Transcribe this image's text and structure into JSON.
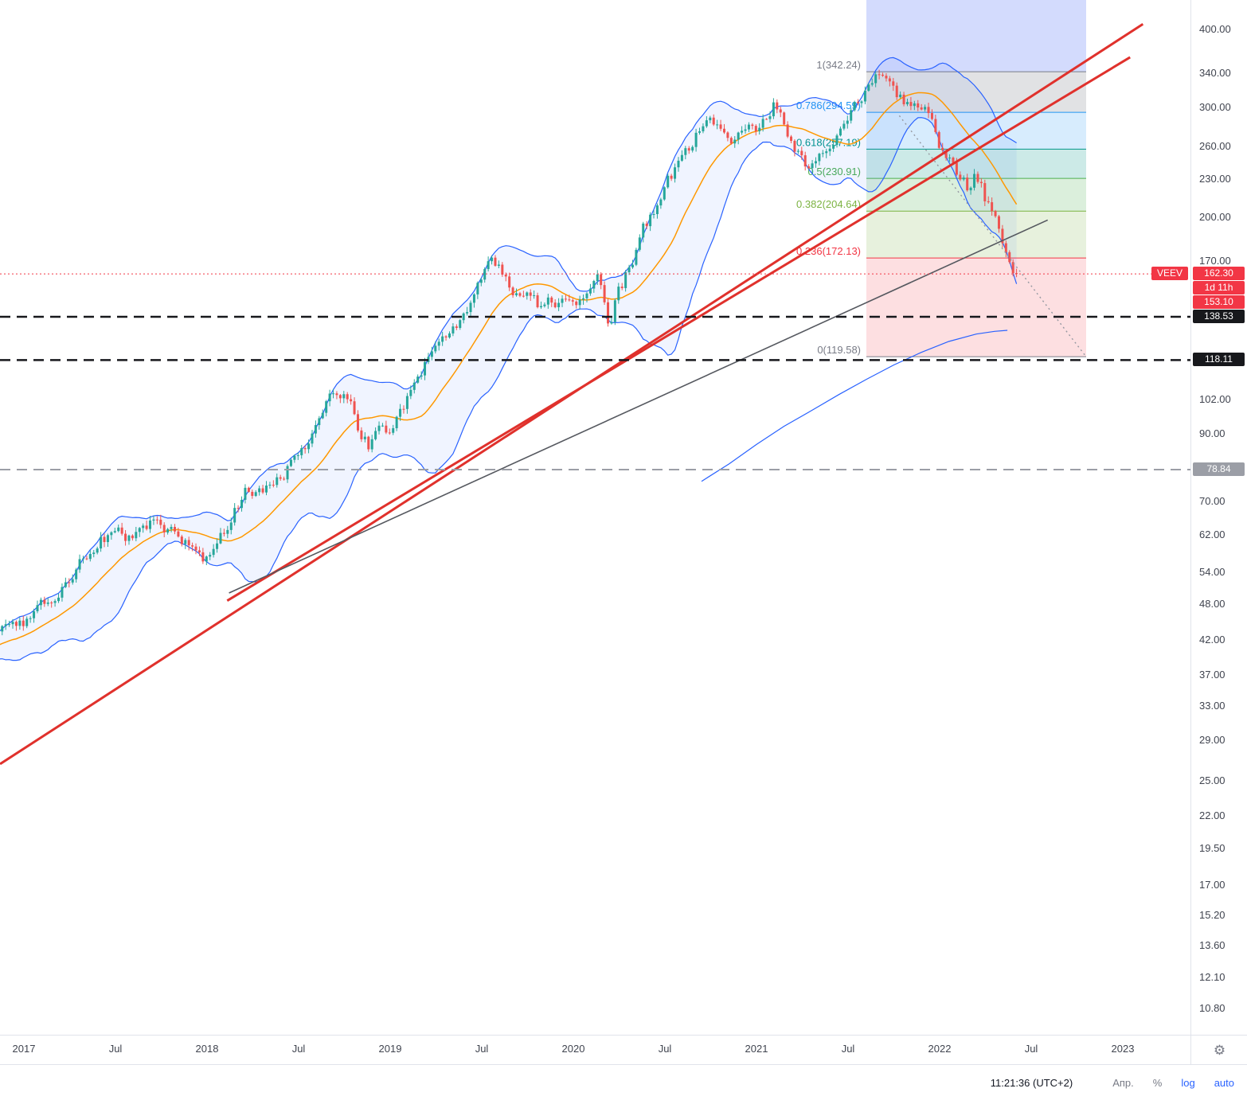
{
  "icons": {
    "gear": "⚙"
  },
  "toolbar": {
    "time": "11:21:36 (UTC+2)",
    "adj": "Апр.",
    "percent": "%",
    "log": "log",
    "auto": "auto"
  },
  "chart_data": {
    "type": "candlestick",
    "symbol": "VEEV",
    "timeframe_hint": "1W",
    "scale": "log",
    "last_price": 162.3,
    "price_label": {
      "symbol": "VEEV",
      "price": "162.30",
      "countdown": "1d 11h",
      "secondary_price": "153.10",
      "bg": "#f23645"
    },
    "candle_colors": {
      "up": "#26a69a",
      "down": "#ef5350"
    },
    "y_axis": {
      "ticks": [
        {
          "label": "400.00",
          "value": 400
        },
        {
          "label": "340.00",
          "value": 340
        },
        {
          "label": "300.00",
          "value": 300
        },
        {
          "label": "260.00",
          "value": 260
        },
        {
          "label": "230.00",
          "value": 230
        },
        {
          "label": "200.00",
          "value": 200
        },
        {
          "label": "170.00",
          "value": 170
        },
        {
          "label": "102.00",
          "value": 102
        },
        {
          "label": "90.00",
          "value": 90
        },
        {
          "label": "70.00",
          "value": 70
        },
        {
          "label": "62.00",
          "value": 62
        },
        {
          "label": "54.00",
          "value": 54
        },
        {
          "label": "48.00",
          "value": 48
        },
        {
          "label": "42.00",
          "value": 42
        },
        {
          "label": "37.00",
          "value": 37
        },
        {
          "label": "33.00",
          "value": 33
        },
        {
          "label": "29.00",
          "value": 29
        },
        {
          "label": "25.00",
          "value": 25
        },
        {
          "label": "22.00",
          "value": 22
        },
        {
          "label": "19.50",
          "value": 19.5
        },
        {
          "label": "17.00",
          "value": 17
        },
        {
          "label": "15.20",
          "value": 15.2
        },
        {
          "label": "13.60",
          "value": 13.6
        },
        {
          "label": "12.10",
          "value": 12.1
        },
        {
          "label": "10.80",
          "value": 10.8
        }
      ]
    },
    "x_axis": {
      "ticks": [
        {
          "label": "2017",
          "t": 2017
        },
        {
          "label": "Jul",
          "t": 2017.5
        },
        {
          "label": "2018",
          "t": 2018
        },
        {
          "label": "Jul",
          "t": 2018.5
        },
        {
          "label": "2019",
          "t": 2019
        },
        {
          "label": "Jul",
          "t": 2019.5
        },
        {
          "label": "2020",
          "t": 2020
        },
        {
          "label": "Jul",
          "t": 2020.5
        },
        {
          "label": "2021",
          "t": 2021
        },
        {
          "label": "Jul",
          "t": 2021.5
        },
        {
          "label": "2022",
          "t": 2022
        },
        {
          "label": "Jul",
          "t": 2022.5
        },
        {
          "label": "2023",
          "t": 2023
        }
      ]
    },
    "price_path": [
      [
        2016.42,
        40
      ],
      [
        2016.6,
        41
      ],
      [
        2016.8,
        42.5
      ],
      [
        2017.0,
        44
      ],
      [
        2017.08,
        47
      ],
      [
        2017.17,
        49
      ],
      [
        2017.25,
        52
      ],
      [
        2017.33,
        57
      ],
      [
        2017.42,
        61
      ],
      [
        2017.5,
        63
      ],
      [
        2017.58,
        61
      ],
      [
        2017.65,
        64
      ],
      [
        2017.72,
        65
      ],
      [
        2017.8,
        62
      ],
      [
        2017.88,
        60
      ],
      [
        2017.95,
        57.5
      ],
      [
        2018.0,
        57
      ],
      [
        2018.05,
        60
      ],
      [
        2018.12,
        65
      ],
      [
        2018.2,
        73
      ],
      [
        2018.28,
        71
      ],
      [
        2018.35,
        74
      ],
      [
        2018.42,
        78
      ],
      [
        2018.5,
        82
      ],
      [
        2018.58,
        90
      ],
      [
        2018.65,
        99
      ],
      [
        2018.72,
        106
      ],
      [
        2018.78,
        103
      ],
      [
        2018.82,
        93
      ],
      [
        2018.88,
        86
      ],
      [
        2018.95,
        91
      ],
      [
        2019.0,
        89
      ],
      [
        2019.08,
        100
      ],
      [
        2019.16,
        112
      ],
      [
        2019.25,
        124
      ],
      [
        2019.33,
        131
      ],
      [
        2019.42,
        142
      ],
      [
        2019.5,
        158
      ],
      [
        2019.55,
        168
      ],
      [
        2019.6,
        163
      ],
      [
        2019.68,
        152
      ],
      [
        2019.75,
        148
      ],
      [
        2019.82,
        142
      ],
      [
        2019.9,
        147
      ],
      [
        2019.96,
        150
      ],
      [
        2020.0,
        147
      ],
      [
        2020.08,
        154
      ],
      [
        2020.14,
        160
      ],
      [
        2020.2,
        128
      ],
      [
        2020.24,
        148
      ],
      [
        2020.3,
        165
      ],
      [
        2020.38,
        190
      ],
      [
        2020.45,
        205
      ],
      [
        2020.52,
        228
      ],
      [
        2020.58,
        245
      ],
      [
        2020.64,
        262
      ],
      [
        2020.7,
        278
      ],
      [
        2020.76,
        288
      ],
      [
        2020.82,
        272
      ],
      [
        2020.88,
        268
      ],
      [
        2020.94,
        275
      ],
      [
        2021.0,
        281
      ],
      [
        2021.06,
        295
      ],
      [
        2021.1,
        308
      ],
      [
        2021.15,
        285
      ],
      [
        2021.2,
        262
      ],
      [
        2021.27,
        243
      ],
      [
        2021.33,
        255
      ],
      [
        2021.4,
        268
      ],
      [
        2021.47,
        284
      ],
      [
        2021.53,
        299
      ],
      [
        2021.6,
        318
      ],
      [
        2021.65,
        335
      ],
      [
        2021.68,
        341
      ],
      [
        2021.72,
        325
      ],
      [
        2021.78,
        312
      ],
      [
        2021.83,
        303
      ],
      [
        2021.87,
        313
      ],
      [
        2021.9,
        307
      ],
      [
        2021.95,
        287
      ],
      [
        2022.0,
        262
      ],
      [
        2022.05,
        247
      ],
      [
        2022.1,
        231
      ],
      [
        2022.15,
        222
      ],
      [
        2022.2,
        234
      ],
      [
        2022.25,
        214
      ],
      [
        2022.3,
        199
      ],
      [
        2022.35,
        183
      ],
      [
        2022.4,
        168
      ],
      [
        2022.42,
        162.3
      ]
    ],
    "bollinger": {
      "length": 20,
      "stdev": 2,
      "basis_color": "#ff9800",
      "band_color": "#2962ff",
      "fill_color": "rgba(41,98,255,0.07)"
    },
    "long_ma": {
      "color": "#2962ff",
      "points": [
        [
          2020.7,
          75.5
        ],
        [
          2020.85,
          80.5
        ],
        [
          2021.0,
          86.5
        ],
        [
          2021.15,
          92.5
        ],
        [
          2021.3,
          98
        ],
        [
          2021.45,
          104
        ],
        [
          2021.6,
          110
        ],
        [
          2021.75,
          116
        ],
        [
          2021.9,
          121.5
        ],
        [
          2022.05,
          126.5
        ],
        [
          2022.2,
          130
        ],
        [
          2022.3,
          131.3
        ],
        [
          2022.37,
          131.8
        ]
      ]
    },
    "fibonacci": {
      "t_start": 2021.6,
      "t_end": 2022.8,
      "levels": [
        {
          "ratio": "1",
          "price": 342.24,
          "label": "1(342.24)",
          "color": "#787b86"
        },
        {
          "ratio": "0.786",
          "price": 294.59,
          "label": "0.786(294.59)",
          "color": "#2196f3"
        },
        {
          "ratio": "0.618",
          "price": 257.19,
          "label": "0.618(257.19)",
          "color": "#009688"
        },
        {
          "ratio": "0.5",
          "price": 230.91,
          "label": "0.5(230.91)",
          "color": "#4caf50"
        },
        {
          "ratio": "0.382",
          "price": 204.64,
          "label": "0.382(204.64)",
          "color": "#7cb342"
        },
        {
          "ratio": "0.236",
          "price": 172.13,
          "label": "0.236(172.13)",
          "color": "#f23645"
        },
        {
          "ratio": "0",
          "price": 119.58,
          "label": "0(119.58)",
          "color": "#787b86"
        }
      ],
      "band_fills": [
        "rgba(120,123,134,0.22)",
        "rgba(33,150,243,0.18)",
        "rgba(0,150,136,0.20)",
        "rgba(76,175,80,0.20)",
        "rgba(124,179,66,0.18)",
        "rgba(242,54,69,0.16)"
      ],
      "projection_box_fill": "rgba(96,125,247,0.28)"
    },
    "trend_lines": [
      {
        "name": "red-trendline-primary",
        "from": [
          2016.87,
          26.6
        ],
        "to": [
          2023.11,
          408
        ],
        "color": "#e0312c",
        "width": 3,
        "dash": ""
      },
      {
        "name": "red-trendline-secondary",
        "from": [
          2018.11,
          48.6
        ],
        "to": [
          2023.04,
          361
        ],
        "color": "#e0312c",
        "width": 3,
        "dash": ""
      },
      {
        "name": "gray-trendline",
        "from": [
          2018.12,
          50
        ],
        "to": [
          2022.59,
          198
        ],
        "color": "#55585f",
        "width": 1.6,
        "dash": ""
      },
      {
        "name": "gray-dashed-projection",
        "from": [
          2021.78,
          291
        ],
        "to": [
          2022.8,
          119.58
        ],
        "color": "#9598a1",
        "width": 1.4,
        "dash": "2,4"
      }
    ],
    "horizontal_lines": [
      {
        "price": 162.3,
        "color": "#f23645",
        "style": "dotted",
        "width": 1,
        "badge_bg": ""
      },
      {
        "price": 138.53,
        "color": "#17181c",
        "style": "dashed",
        "width": 2.5,
        "badge_bg": "#17181c"
      },
      {
        "price": 118.11,
        "color": "#17181c",
        "style": "dashed",
        "width": 2.5,
        "badge_bg": "#17181c"
      },
      {
        "price": 78.84,
        "color": "#9b9ea6",
        "style": "dashed",
        "width": 2,
        "badge_bg": "#9b9ea6"
      }
    ]
  }
}
